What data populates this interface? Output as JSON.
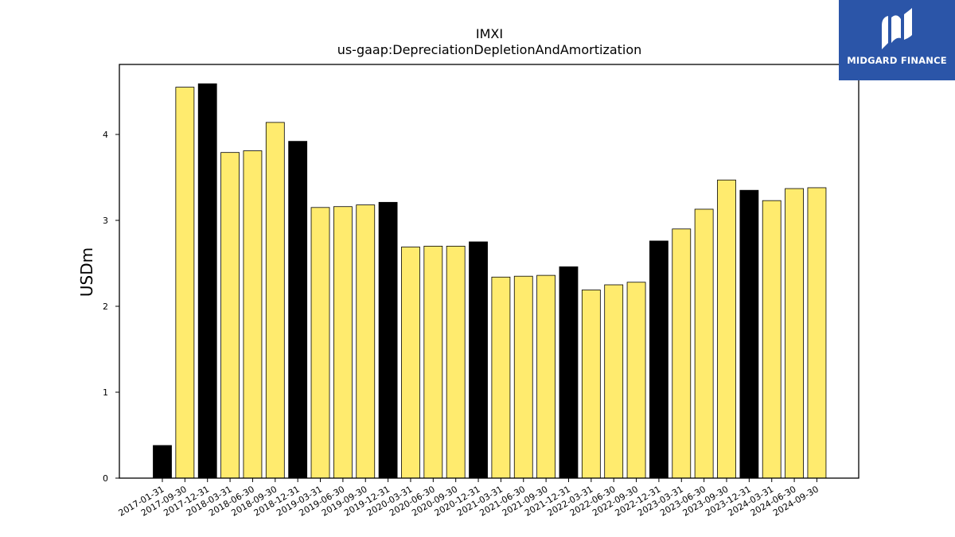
{
  "logo": {
    "text": "MIDGARD FINANCE",
    "bg_color": "#2b55a8"
  },
  "chart_data": {
    "type": "bar",
    "title": "IMXI",
    "subtitle": "us-gaap:DepreciationDepletionAndAmortization",
    "xlabel": "",
    "ylabel": "USDm",
    "ylim": [
      0,
      4.8
    ],
    "yticks": [
      0,
      1,
      2,
      3,
      4
    ],
    "grid": false,
    "colors": {
      "quarter": "#ffeb6e",
      "year_end": "#000000",
      "edge": "#000000"
    },
    "categories": [
      "2017-01-31",
      "2017-09-30",
      "2017-12-31",
      "2018-03-31",
      "2018-06-30",
      "2018-09-30",
      "2018-12-31",
      "2019-03-31",
      "2019-06-30",
      "2019-09-30",
      "2019-12-31",
      "2020-03-31",
      "2020-06-30",
      "2020-09-30",
      "2020-12-31",
      "2021-03-31",
      "2021-06-30",
      "2021-09-30",
      "2021-12-31",
      "2022-03-31",
      "2022-06-30",
      "2022-09-30",
      "2022-12-31",
      "2023-03-31",
      "2023-06-30",
      "2023-09-30",
      "2023-12-31",
      "2024-03-31",
      "2024-06-30",
      "2024-09-30"
    ],
    "values": [
      0.38,
      4.55,
      4.59,
      3.79,
      3.81,
      4.14,
      3.92,
      3.15,
      3.16,
      3.18,
      3.21,
      2.69,
      2.7,
      2.7,
      2.75,
      2.34,
      2.35,
      2.36,
      2.46,
      2.19,
      2.25,
      2.28,
      2.76,
      2.9,
      3.13,
      3.47,
      3.35,
      3.23,
      3.37,
      3.38
    ],
    "year_end": [
      true,
      false,
      true,
      false,
      false,
      false,
      true,
      false,
      false,
      false,
      true,
      false,
      false,
      false,
      true,
      false,
      false,
      false,
      true,
      false,
      false,
      false,
      true,
      false,
      false,
      false,
      true,
      false,
      false,
      false
    ]
  }
}
